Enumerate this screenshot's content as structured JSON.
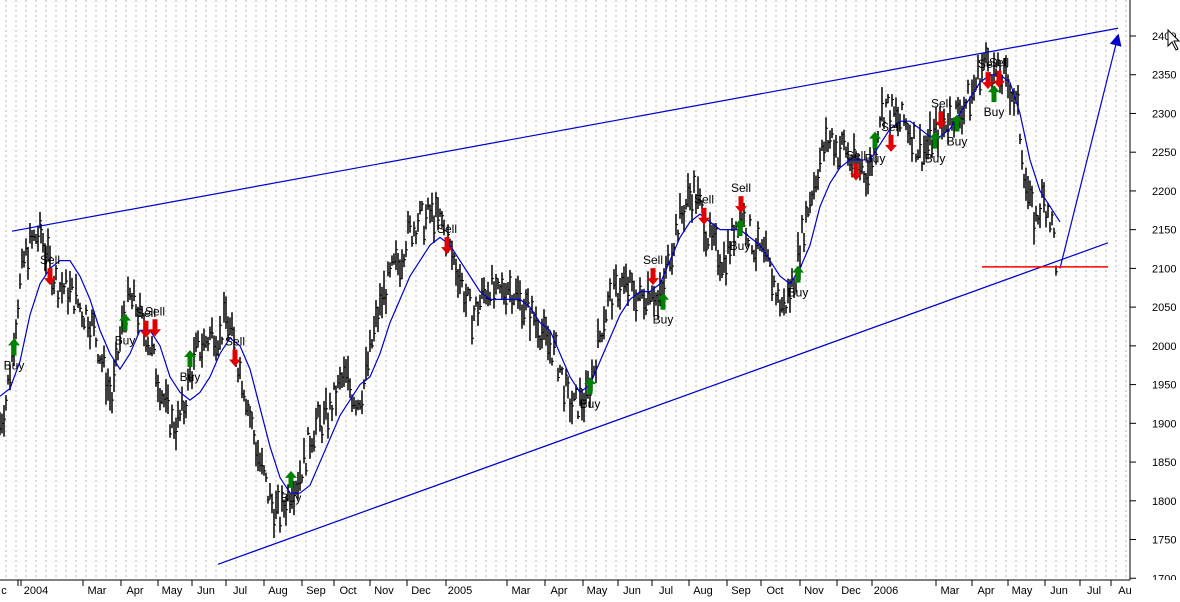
{
  "chart_data": {
    "type": "line",
    "title": "",
    "xlabel": "",
    "ylabel": "",
    "ylim": [
      1690,
      2440
    ],
    "y_ticks": [
      1700,
      1750,
      1800,
      1850,
      1900,
      1950,
      2000,
      2050,
      2100,
      2150,
      2200,
      2250,
      2300,
      2350,
      2400
    ],
    "x_ticks": [
      "c",
      "2004",
      "Mar",
      "Apr",
      "May",
      "Jun",
      "Jul",
      "Aug",
      "Sep",
      "Oct",
      "Nov",
      "Dec",
      "2005",
      "Mar",
      "Apr",
      "May",
      "Jun",
      "Jul",
      "Aug",
      "Sep",
      "Oct",
      "Nov",
      "Dec",
      "2006",
      "Mar",
      "Apr",
      "May",
      "Jun",
      "Jul",
      "Au"
    ],
    "grid": "vertical dotted",
    "price_path": [
      [
        0,
        1900
      ],
      [
        6,
        1930
      ],
      [
        12,
        1990
      ],
      [
        18,
        2060
      ],
      [
        24,
        2110
      ],
      [
        30,
        2130
      ],
      [
        36,
        2140
      ],
      [
        41,
        2145
      ],
      [
        46,
        2120
      ],
      [
        52,
        2095
      ],
      [
        58,
        2080
      ],
      [
        64,
        2075
      ],
      [
        70,
        2070
      ],
      [
        76,
        2060
      ],
      [
        82,
        2045
      ],
      [
        88,
        2040
      ],
      [
        94,
        2020
      ],
      [
        100,
        1990
      ],
      [
        106,
        1960
      ],
      [
        112,
        1930
      ],
      [
        118,
        1990
      ],
      [
        124,
        2040
      ],
      [
        130,
        2060
      ],
      [
        136,
        2050
      ],
      [
        142,
        2030
      ],
      [
        148,
        2010
      ],
      [
        154,
        1980
      ],
      [
        160,
        1950
      ],
      [
        166,
        1920
      ],
      [
        172,
        1900
      ],
      [
        178,
        1900
      ],
      [
        184,
        1920
      ],
      [
        190,
        1960
      ],
      [
        196,
        1990
      ],
      [
        202,
        2000
      ],
      [
        208,
        2010
      ],
      [
        214,
        2020
      ],
      [
        220,
        2010
      ],
      [
        226,
        2040
      ],
      [
        232,
        2010
      ],
      [
        238,
        1980
      ],
      [
        244,
        1950
      ],
      [
        250,
        1910
      ],
      [
        256,
        1870
      ],
      [
        262,
        1840
      ],
      [
        268,
        1810
      ],
      [
        274,
        1790
      ],
      [
        280,
        1780
      ],
      [
        286,
        1800
      ],
      [
        292,
        1820
      ],
      [
        298,
        1830
      ],
      [
        304,
        1850
      ],
      [
        310,
        1880
      ],
      [
        316,
        1900
      ],
      [
        322,
        1900
      ],
      [
        328,
        1910
      ],
      [
        334,
        1930
      ],
      [
        340,
        1950
      ],
      [
        346,
        1960
      ],
      [
        352,
        1940
      ],
      [
        358,
        1930
      ],
      [
        364,
        1950
      ],
      [
        370,
        1990
      ],
      [
        376,
        2030
      ],
      [
        382,
        2060
      ],
      [
        388,
        2080
      ],
      [
        394,
        2100
      ],
      [
        400,
        2110
      ],
      [
        406,
        2140
      ],
      [
        412,
        2150
      ],
      [
        418,
        2165
      ],
      [
        424,
        2160
      ],
      [
        430,
        2170
      ],
      [
        436,
        2165
      ],
      [
        442,
        2160
      ],
      [
        448,
        2130
      ],
      [
        454,
        2110
      ],
      [
        460,
        2090
      ],
      [
        466,
        2060
      ],
      [
        472,
        2040
      ],
      [
        478,
        2050
      ],
      [
        484,
        2070
      ],
      [
        490,
        2080
      ],
      [
        496,
        2060
      ],
      [
        502,
        2070
      ],
      [
        508,
        2080
      ],
      [
        514,
        2070
      ],
      [
        520,
        2060
      ],
      [
        526,
        2050
      ],
      [
        532,
        2040
      ],
      [
        538,
        2030
      ],
      [
        544,
        2010
      ],
      [
        550,
        2000
      ],
      [
        556,
        1990
      ],
      [
        562,
        1960
      ],
      [
        568,
        1930
      ],
      [
        574,
        1920
      ],
      [
        580,
        1930
      ],
      [
        586,
        1930
      ],
      [
        592,
        1960
      ],
      [
        598,
        2000
      ],
      [
        604,
        2040
      ],
      [
        610,
        2060
      ],
      [
        616,
        2070
      ],
      [
        622,
        2080
      ],
      [
        628,
        2075
      ],
      [
        634,
        2070
      ],
      [
        640,
        2060
      ],
      [
        646,
        2070
      ],
      [
        652,
        2080
      ],
      [
        658,
        2050
      ],
      [
        664,
        2080
      ],
      [
        670,
        2120
      ],
      [
        676,
        2150
      ],
      [
        682,
        2170
      ],
      [
        688,
        2190
      ],
      [
        694,
        2200
      ],
      [
        700,
        2180
      ],
      [
        706,
        2150
      ],
      [
        712,
        2130
      ],
      [
        718,
        2120
      ],
      [
        724,
        2110
      ],
      [
        730,
        2130
      ],
      [
        736,
        2160
      ],
      [
        742,
        2170
      ],
      [
        748,
        2150
      ],
      [
        754,
        2130
      ],
      [
        760,
        2120
      ],
      [
        766,
        2110
      ],
      [
        772,
        2090
      ],
      [
        778,
        2060
      ],
      [
        784,
        2050
      ],
      [
        790,
        2070
      ],
      [
        796,
        2100
      ],
      [
        802,
        2140
      ],
      [
        808,
        2180
      ],
      [
        814,
        2210
      ],
      [
        820,
        2240
      ],
      [
        826,
        2260
      ],
      [
        832,
        2270
      ],
      [
        838,
        2250
      ],
      [
        844,
        2260
      ],
      [
        850,
        2240
      ],
      [
        856,
        2230
      ],
      [
        862,
        2230
      ],
      [
        868,
        2220
      ],
      [
        874,
        2250
      ],
      [
        880,
        2300
      ],
      [
        886,
        2310
      ],
      [
        892,
        2300
      ],
      [
        898,
        2290
      ],
      [
        904,
        2290
      ],
      [
        910,
        2280
      ],
      [
        916,
        2260
      ],
      [
        922,
        2250
      ],
      [
        928,
        2260
      ],
      [
        934,
        2270
      ],
      [
        940,
        2280
      ],
      [
        946,
        2290
      ],
      [
        952,
        2300
      ],
      [
        958,
        2300
      ],
      [
        964,
        2310
      ],
      [
        970,
        2320
      ],
      [
        976,
        2340
      ],
      [
        982,
        2360
      ],
      [
        988,
        2370
      ],
      [
        994,
        2350
      ],
      [
        1000,
        2350
      ],
      [
        1006,
        2340
      ],
      [
        1012,
        2330
      ],
      [
        1018,
        2300
      ],
      [
        1024,
        2230
      ],
      [
        1030,
        2180
      ],
      [
        1036,
        2160
      ],
      [
        1042,
        2190
      ],
      [
        1048,
        2180
      ],
      [
        1054,
        2140
      ],
      [
        1058,
        2080
      ]
    ],
    "moving_average": [
      [
        0,
        1935
      ],
      [
        10,
        1945
      ],
      [
        20,
        1980
      ],
      [
        30,
        2040
      ],
      [
        40,
        2080
      ],
      [
        50,
        2100
      ],
      [
        60,
        2110
      ],
      [
        70,
        2110
      ],
      [
        80,
        2090
      ],
      [
        90,
        2060
      ],
      [
        100,
        2020
      ],
      [
        110,
        1990
      ],
      [
        120,
        1970
      ],
      [
        130,
        1990
      ],
      [
        140,
        2020
      ],
      [
        150,
        2020
      ],
      [
        160,
        2000
      ],
      [
        170,
        1960
      ],
      [
        180,
        1940
      ],
      [
        190,
        1930
      ],
      [
        200,
        1940
      ],
      [
        210,
        1960
      ],
      [
        220,
        1990
      ],
      [
        230,
        2010
      ],
      [
        240,
        2000
      ],
      [
        250,
        1970
      ],
      [
        260,
        1920
      ],
      [
        270,
        1870
      ],
      [
        280,
        1830
      ],
      [
        290,
        1810
      ],
      [
        300,
        1810
      ],
      [
        310,
        1820
      ],
      [
        320,
        1850
      ],
      [
        330,
        1880
      ],
      [
        340,
        1910
      ],
      [
        350,
        1930
      ],
      [
        360,
        1950
      ],
      [
        370,
        1960
      ],
      [
        380,
        1990
      ],
      [
        390,
        2030
      ],
      [
        400,
        2060
      ],
      [
        410,
        2090
      ],
      [
        420,
        2110
      ],
      [
        430,
        2130
      ],
      [
        440,
        2140
      ],
      [
        450,
        2130
      ],
      [
        460,
        2110
      ],
      [
        470,
        2090
      ],
      [
        480,
        2070
      ],
      [
        490,
        2060
      ],
      [
        500,
        2060
      ],
      [
        510,
        2060
      ],
      [
        520,
        2060
      ],
      [
        530,
        2050
      ],
      [
        540,
        2030
      ],
      [
        550,
        2020
      ],
      [
        560,
        1990
      ],
      [
        570,
        1960
      ],
      [
        580,
        1940
      ],
      [
        590,
        1950
      ],
      [
        600,
        1980
      ],
      [
        610,
        2010
      ],
      [
        620,
        2040
      ],
      [
        630,
        2060
      ],
      [
        640,
        2070
      ],
      [
        650,
        2070
      ],
      [
        660,
        2080
      ],
      [
        670,
        2110
      ],
      [
        680,
        2140
      ],
      [
        690,
        2160
      ],
      [
        700,
        2170
      ],
      [
        710,
        2160
      ],
      [
        720,
        2150
      ],
      [
        730,
        2150
      ],
      [
        740,
        2150
      ],
      [
        750,
        2140
      ],
      [
        760,
        2130
      ],
      [
        770,
        2110
      ],
      [
        780,
        2090
      ],
      [
        790,
        2080
      ],
      [
        800,
        2100
      ],
      [
        810,
        2130
      ],
      [
        820,
        2180
      ],
      [
        830,
        2210
      ],
      [
        840,
        2230
      ],
      [
        850,
        2240
      ],
      [
        860,
        2240
      ],
      [
        870,
        2240
      ],
      [
        880,
        2260
      ],
      [
        890,
        2280
      ],
      [
        900,
        2290
      ],
      [
        910,
        2290
      ],
      [
        920,
        2280
      ],
      [
        930,
        2270
      ],
      [
        940,
        2270
      ],
      [
        950,
        2280
      ],
      [
        960,
        2300
      ],
      [
        970,
        2320
      ],
      [
        980,
        2340
      ],
      [
        990,
        2350
      ],
      [
        1000,
        2350
      ],
      [
        1010,
        2340
      ],
      [
        1020,
        2300
      ],
      [
        1030,
        2240
      ],
      [
        1040,
        2200
      ],
      [
        1050,
        2180
      ],
      [
        1060,
        2160
      ]
    ],
    "trendlines": [
      {
        "color": "#0000cc",
        "from": [
          12,
          2148
        ],
        "to": [
          1118,
          2410
        ],
        "arrow": false
      },
      {
        "color": "#0000cc",
        "from": [
          218,
          1718
        ],
        "to": [
          1108,
          2133
        ],
        "arrow": false
      },
      {
        "color": "#0000cc",
        "from": [
          1060,
          2100
        ],
        "to": [
          1118,
          2400
        ],
        "arrow": true
      }
    ],
    "support_line": {
      "color": "#ff0000",
      "value": 2102,
      "from": 982,
      "to": 1108
    },
    "signals": [
      {
        "type": "buy",
        "x": 14,
        "y": 1998,
        "label": "Buy"
      },
      {
        "type": "sell",
        "x": 50,
        "y": 2090,
        "label": "Sell"
      },
      {
        "type": "buy",
        "x": 125,
        "y": 2030,
        "label": "Buy"
      },
      {
        "type": "sell",
        "x": 146,
        "y": 2022,
        "label": "Sell"
      },
      {
        "type": "sell",
        "x": 155,
        "y": 2024,
        "label": "Sell"
      },
      {
        "type": "buy",
        "x": 190,
        "y": 1983,
        "label": "Buy"
      },
      {
        "type": "sell",
        "x": 235,
        "y": 1985,
        "label": "Sell"
      },
      {
        "type": "buy",
        "x": 291,
        "y": 1827,
        "label": "Buy"
      },
      {
        "type": "sell",
        "x": 447,
        "y": 2130,
        "label": "Sell"
      },
      {
        "type": "sell",
        "x": 653,
        "y": 2090,
        "label": "Sell"
      },
      {
        "type": "buy",
        "x": 663,
        "y": 2057,
        "label": "Buy"
      },
      {
        "type": "buy",
        "x": 590,
        "y": 1948,
        "label": "Buy"
      },
      {
        "type": "sell",
        "x": 704,
        "y": 2168,
        "label": "Sell"
      },
      {
        "type": "sell",
        "x": 741,
        "y": 2183,
        "label": "Sell"
      },
      {
        "type": "buy",
        "x": 740,
        "y": 2152,
        "label": "Buy"
      },
      {
        "type": "buy",
        "x": 798,
        "y": 2092,
        "label": "Buy"
      },
      {
        "type": "sell",
        "x": 856,
        "y": 2225,
        "label": "Sell"
      },
      {
        "type": "buy",
        "x": 875,
        "y": 2265,
        "label": "Buy"
      },
      {
        "type": "sell",
        "x": 891,
        "y": 2262,
        "label": "Sell"
      },
      {
        "type": "sell",
        "x": 941,
        "y": 2292,
        "label": "Sell"
      },
      {
        "type": "buy",
        "x": 935,
        "y": 2265,
        "label": "Buy"
      },
      {
        "type": "buy",
        "x": 957,
        "y": 2287,
        "label": "Buy"
      },
      {
        "type": "sell",
        "x": 988,
        "y": 2343,
        "label": "Sell"
      },
      {
        "type": "sell",
        "x": 999,
        "y": 2345,
        "label": "Sell"
      },
      {
        "type": "buy",
        "x": 994,
        "y": 2325,
        "label": "Buy"
      }
    ]
  }
}
